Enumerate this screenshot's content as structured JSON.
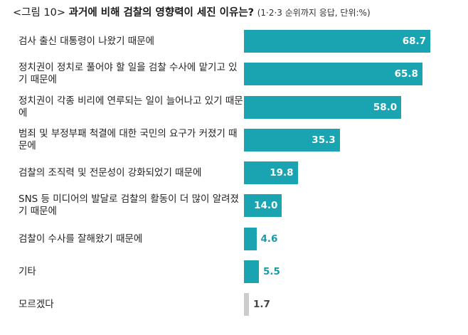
{
  "title": {
    "figure_label": "<그림 10>",
    "main": "과거에 비해 검찰의 영향력이 세진 이유는?",
    "sub": "(1·2·3 순위까지 응답, 단위:%)"
  },
  "colors": {
    "bar": "#1aa3b1",
    "bar_muted": "#cccccc",
    "label_inside": "#ffffff",
    "label_outside_teal": "#1a9aa8",
    "label_outside_muted": "#444444"
  },
  "chart_data": {
    "type": "bar",
    "orientation": "horizontal",
    "title": "과거에 비해 검찰의 영향력이 세진 이유는?",
    "unit": "%",
    "categories": [
      "검사 출신 대통령이 나왔기 때문에",
      "정치권이 정치로 풀어야 할 일을 검찰 수사에 맡기고 있기 때문에",
      "정치권이 각종 비리에 연루되는 일이 늘어나고 있기 때문에",
      "범죄 및 부정부패 척결에 대한 국민의 요구가 커졌기 때문에",
      "검찰의 조직력 및 전문성이 강화되었기 때문에",
      "SNS 등 미디어의 발달로 검찰의 활동이 더 많이 알려졌기 때문에",
      "검찰이 수사를 잘해왔기 때문에",
      "기타",
      "모르겠다"
    ],
    "values": [
      68.7,
      65.8,
      58.0,
      35.3,
      19.8,
      14.0,
      4.6,
      5.5,
      1.7
    ],
    "value_labels": [
      "68.7",
      "65.8",
      "58.0",
      "35.3",
      "19.8",
      "14.0",
      "4.6",
      "5.5",
      "1.7"
    ],
    "muted_categories": [
      "모르겠다"
    ],
    "grid": false,
    "legend": "none"
  }
}
